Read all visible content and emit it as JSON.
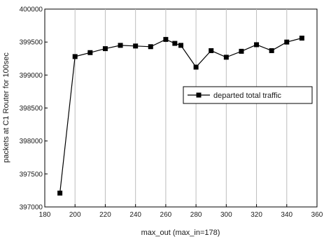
{
  "chart_data": {
    "type": "line",
    "title": "",
    "xlabel": "max_out  (max_in=178)",
    "ylabel": "packets at C1 Router for 100sec",
    "xlim": [
      180,
      360
    ],
    "ylim": [
      397000,
      400000
    ],
    "x_ticks": [
      "180",
      "200",
      "220",
      "240",
      "260",
      "280",
      "300",
      "320",
      "340",
      "360"
    ],
    "y_ticks": [
      "397000",
      "397500",
      "398000",
      "398500",
      "399000",
      "399500",
      "400000"
    ],
    "grid": "vertical",
    "legend_position": "right-middle",
    "series": [
      {
        "name": "departed total traffic",
        "marker": "square",
        "color": "#000000",
        "x": [
          190,
          200,
          210,
          220,
          230,
          240,
          250,
          260,
          266,
          270,
          280,
          290,
          300,
          310,
          320,
          330,
          340,
          350
        ],
        "y": [
          397210,
          399280,
          399340,
          399400,
          399450,
          399440,
          399430,
          399540,
          399480,
          399450,
          399120,
          399370,
          399270,
          399360,
          399460,
          399370,
          399500,
          399560
        ]
      }
    ]
  }
}
